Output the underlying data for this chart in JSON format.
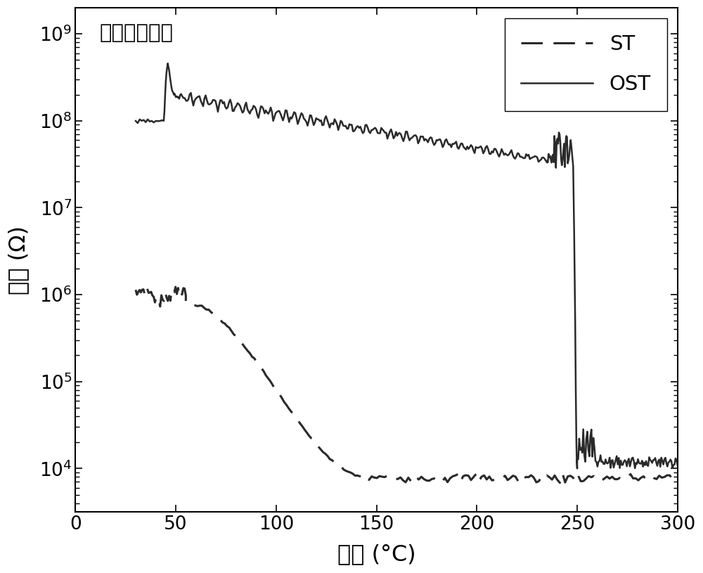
{
  "title": "电阔变化曲线",
  "xlabel": "温度 (°C)",
  "ylabel": "电阔 (Ω)",
  "xlim": [
    0,
    300
  ],
  "ylim_log": [
    3.5,
    9.3
  ],
  "background_color": "#ffffff",
  "line_color": "#2a2a2a",
  "title_fontsize": 21,
  "label_fontsize": 23,
  "tick_fontsize": 19,
  "legend_fontsize": 21
}
